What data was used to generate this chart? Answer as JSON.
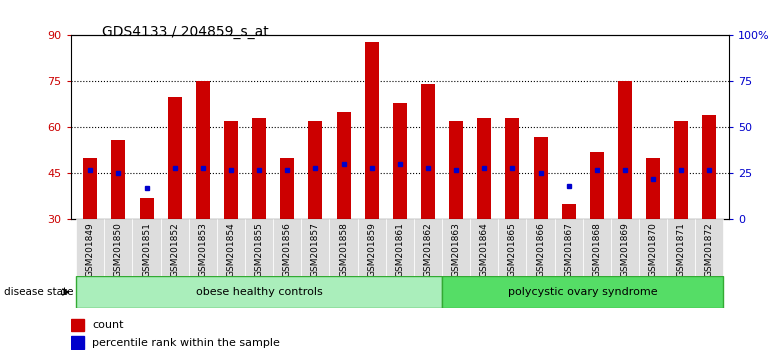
{
  "title": "GDS4133 / 204859_s_at",
  "samples": [
    "GSM201849",
    "GSM201850",
    "GSM201851",
    "GSM201852",
    "GSM201853",
    "GSM201854",
    "GSM201855",
    "GSM201856",
    "GSM201857",
    "GSM201858",
    "GSM201859",
    "GSM201861",
    "GSM201862",
    "GSM201863",
    "GSM201864",
    "GSM201865",
    "GSM201866",
    "GSM201867",
    "GSM201868",
    "GSM201869",
    "GSM201870",
    "GSM201871",
    "GSM201872"
  ],
  "counts": [
    50,
    56,
    37,
    70,
    75,
    62,
    63,
    50,
    62,
    65,
    88,
    68,
    74,
    62,
    63,
    63,
    57,
    35,
    52,
    75,
    50,
    62,
    64
  ],
  "percentiles": [
    27,
    25,
    17,
    28,
    28,
    27,
    27,
    27,
    28,
    30,
    28,
    30,
    28,
    27,
    28,
    28,
    25,
    18,
    27,
    27,
    22,
    27,
    27
  ],
  "group1_label": "obese healthy controls",
  "group1_count": 13,
  "group2_label": "polycystic ovary syndrome",
  "group2_count": 10,
  "disease_state_label": "disease state",
  "ylim_left": [
    30,
    90
  ],
  "ylim_right": [
    0,
    100
  ],
  "yticks_left": [
    30,
    45,
    60,
    75,
    90
  ],
  "yticks_right": [
    0,
    25,
    50,
    75,
    100
  ],
  "ytick_labels_right": [
    "0",
    "25",
    "50",
    "75",
    "100%"
  ],
  "bar_color": "#cc0000",
  "percentile_color": "#0000cc",
  "bar_width": 0.5,
  "bg_color": "#ffffff",
  "group1_color": "#aaeebb",
  "group2_color": "#55dd66",
  "label_color_left": "#cc0000",
  "label_color_right": "#0000cc",
  "xtick_bg": "#dddddd"
}
